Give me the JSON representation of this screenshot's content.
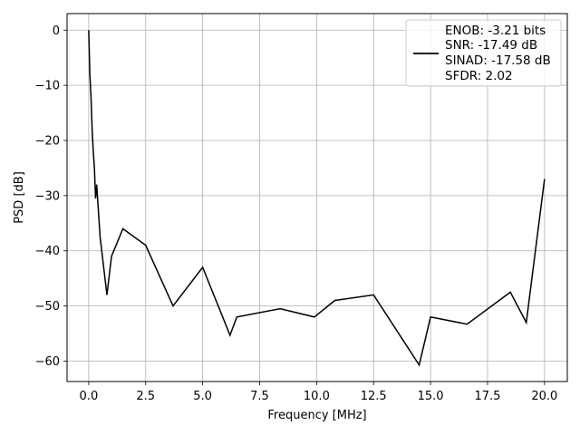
{
  "chart_data": {
    "type": "line",
    "xlabel": "Frequency [MHz]",
    "ylabel": "PSD [dB]",
    "xlim": [
      -0.95,
      21.0
    ],
    "ylim": [
      -63.7,
      3.0
    ],
    "xticks": [
      0.0,
      2.5,
      5.0,
      7.5,
      10.0,
      12.5,
      15.0,
      17.5,
      20.0
    ],
    "xtick_labels": [
      "0.0",
      "2.5",
      "5.0",
      "7.5",
      "10.0",
      "12.5",
      "15.0",
      "17.5",
      "20.0"
    ],
    "yticks": [
      0,
      -10,
      -20,
      -30,
      -40,
      -50,
      -60
    ],
    "ytick_labels": [
      "0",
      "−10",
      "−20",
      "−30",
      "−40",
      "−50",
      "−60"
    ],
    "grid": true,
    "legend_position": "top-right",
    "legend_lines": [
      "ENOB: -3.21 bits",
      "SNR: -17.49 dB",
      "SINAD: -17.58 dB",
      "SFDR: 2.02"
    ],
    "series": [
      {
        "color": "#000000",
        "x": [
          0.0,
          0.05,
          0.1,
          0.15,
          0.2,
          0.25,
          0.3,
          0.35,
          0.5,
          0.8,
          1.0,
          1.5,
          2.5,
          3.7,
          5.0,
          6.2,
          6.5,
          8.4,
          9.9,
          10.8,
          12.5,
          14.5,
          15.0,
          16.6,
          18.5,
          19.2,
          20.0
        ],
        "y": [
          0.0,
          -8.0,
          -12.0,
          -18.0,
          -22.0,
          -25.0,
          -30.5,
          -28.0,
          -37.5,
          -48.0,
          -41.0,
          -36.0,
          -39.0,
          -50.0,
          -43.0,
          -55.3,
          -52.0,
          -50.5,
          -52.0,
          -49.0,
          -48.0,
          -60.7,
          -52.0,
          -53.3,
          -47.5,
          -53.0,
          -27.0
        ]
      }
    ]
  }
}
